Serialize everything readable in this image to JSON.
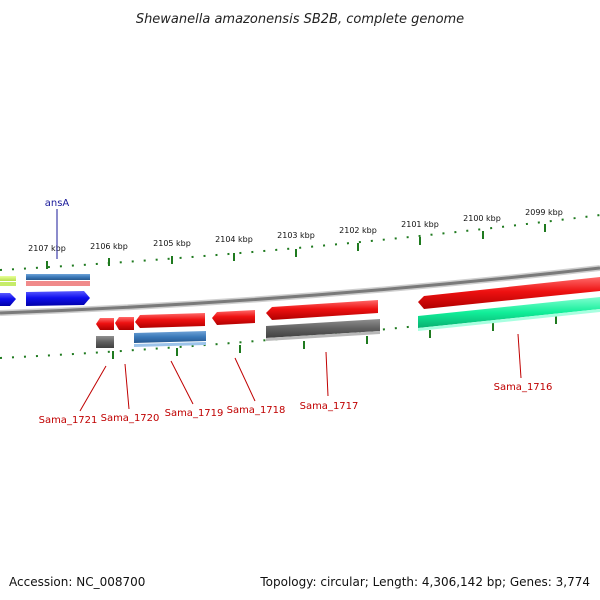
{
  "header": {
    "title": "Shewanella amazonensis SB2B, complete genome"
  },
  "ruler": {
    "ticks": [
      {
        "label": "2107 kbp"
      },
      {
        "label": "2106 kbp"
      },
      {
        "label": "2105 kbp"
      },
      {
        "label": "2104 kbp"
      },
      {
        "label": "2103 kbp"
      },
      {
        "label": "2102 kbp"
      },
      {
        "label": "2101 kbp"
      },
      {
        "label": "2100 kbp"
      },
      {
        "label": "2099 kbp"
      }
    ]
  },
  "genes": {
    "top_label": "ansA",
    "labels": [
      "Sama_1721",
      "Sama_1720",
      "Sama_1719",
      "Sama_1718",
      "Sama_1717",
      "Sama_1716"
    ]
  },
  "colors": {
    "cds": "#ee1111",
    "cog_gray": "#666666",
    "cog_blue": "#3a78b8",
    "cog_green": "#11ee99",
    "backbone": "#888888",
    "tick": "#1f7a1f",
    "label_red": "#c00000",
    "label_blue": "#1a1a9a"
  },
  "footer": {
    "accession": "Accession: NC_008700",
    "topology": "Topology: circular; Length: 4,306,142 bp; Genes: 3,774"
  }
}
